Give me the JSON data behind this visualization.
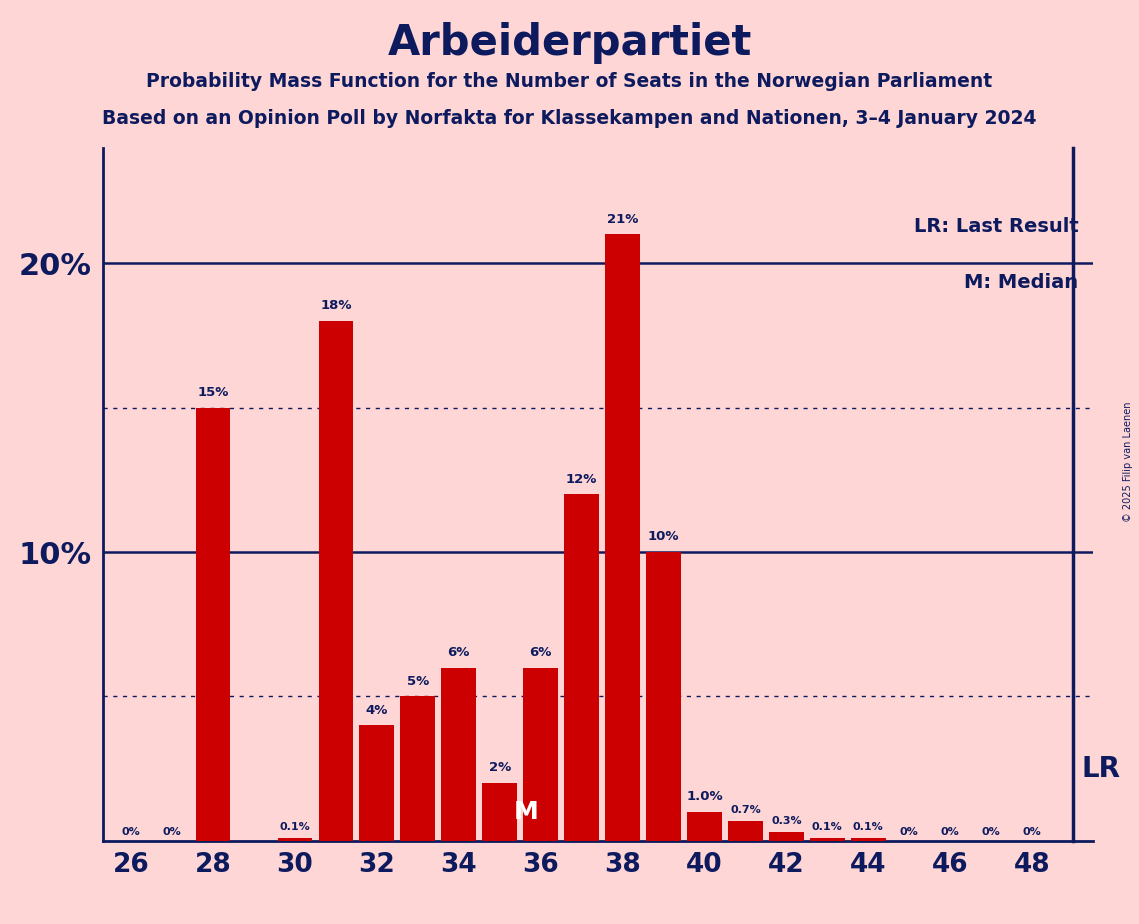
{
  "title": "Arbeiderpartiet",
  "subtitle1": "Probability Mass Function for the Number of Seats in the Norwegian Parliament",
  "subtitle2": "Based on an Opinion Poll by Norfakta for Klassekampen and Nationen, 3–4 January 2024",
  "copyright": "© 2025 Filip van Laenen",
  "seats": [
    26,
    27,
    28,
    29,
    30,
    31,
    32,
    33,
    34,
    35,
    36,
    37,
    38,
    39,
    40,
    41,
    42,
    43,
    44,
    45,
    46,
    47,
    48
  ],
  "probs": [
    0,
    0,
    15,
    0,
    0.1,
    18,
    4,
    5,
    6,
    2,
    6,
    12,
    21,
    10,
    1.0,
    0.7,
    0.3,
    0.1,
    0.1,
    0,
    0,
    0,
    0
  ],
  "bar_labels": [
    "0%",
    "0%",
    "15%",
    "",
    "0.1%",
    "18%",
    "4%",
    "5%",
    "6%",
    "2%",
    "6%",
    "12%",
    "21%",
    "10%",
    "1.0%",
    "0.7%",
    "0.3%",
    "0.1%",
    "0.1%",
    "0%",
    "0%",
    "0%",
    "0%"
  ],
  "median_seat": 35,
  "last_result_seat": 48,
  "bar_color": "#cc0000",
  "background_color": "#ffd6d6",
  "text_color": "#0d1b5e",
  "bar_width": 0.85,
  "ylim": [
    0,
    24
  ],
  "xlim": [
    25.3,
    49.5
  ],
  "ytick_vals": [
    10,
    20
  ],
  "ytick_labels": [
    "10%",
    "20%"
  ],
  "xtick_vals": [
    26,
    28,
    30,
    32,
    34,
    36,
    38,
    40,
    42,
    44,
    46,
    48
  ],
  "hline_solid": [
    10,
    20
  ],
  "hline_dotted": [
    5,
    15
  ],
  "lr_annotation": "LR: Last Result",
  "m_annotation": "M: Median",
  "lr_label": "LR",
  "m_label": "M"
}
